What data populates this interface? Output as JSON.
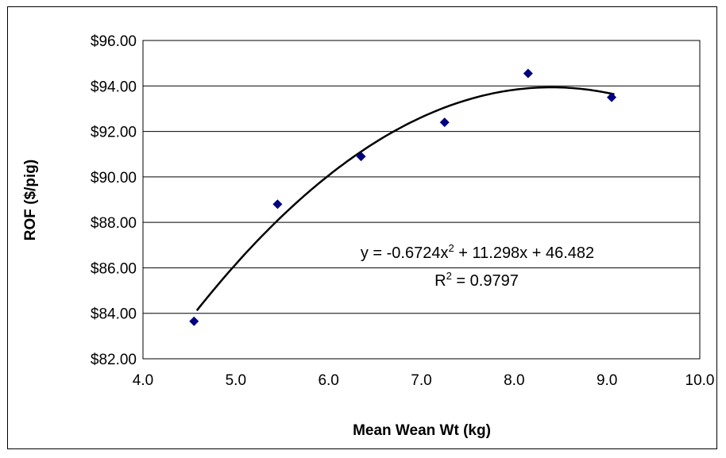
{
  "chart_data": {
    "type": "scatter",
    "xlabel": "Mean Wean Wt (kg)",
    "ylabel": "ROF ($/pig)",
    "xlim": [
      4.0,
      10.0
    ],
    "ylim": [
      82.0,
      96.0
    ],
    "x_ticks": [
      "4.0",
      "5.0",
      "6.0",
      "7.0",
      "8.0",
      "9.0",
      "10.0"
    ],
    "y_ticks": [
      "$82.00",
      "$84.00",
      "$86.00",
      "$88.00",
      "$90.00",
      "$92.00",
      "$94.00",
      "$96.00"
    ],
    "grid": "horizontal",
    "series": [
      {
        "x": [
          4.55,
          5.45,
          6.35,
          7.25,
          8.15,
          9.05
        ],
        "y": [
          83.65,
          88.8,
          90.9,
          92.4,
          94.55,
          93.5
        ],
        "marker": "diamond",
        "color": "#00007f"
      }
    ],
    "trendline": {
      "type": "polynomial",
      "coefficients": [
        -0.6724,
        11.298,
        46.482
      ],
      "x_range": [
        4.58,
        9.08
      ],
      "color": "#000000"
    },
    "annotations": {
      "equation_prefix": "y = -0.6724x",
      "equation_exp": "2",
      "equation_suffix": " + 11.298x + 46.482",
      "r2_prefix": "R",
      "r2_exp": "2",
      "r2_suffix": " = 0.9797"
    }
  }
}
